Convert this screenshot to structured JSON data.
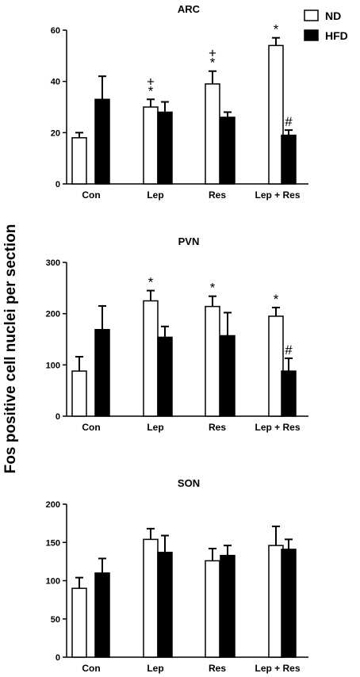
{
  "figure": {
    "ylabel": "Fos positive cell nuclei per section",
    "legend": [
      {
        "label": "ND",
        "color": "#ffffff"
      },
      {
        "label": "HFD",
        "color": "#000000"
      }
    ]
  },
  "chart_data": [
    {
      "type": "bar",
      "title": "ARC",
      "categories": [
        "Con",
        "Lep",
        "Res",
        "Lep + Res"
      ],
      "ylim": [
        0,
        60
      ],
      "yticks": [
        0,
        20,
        40,
        60
      ],
      "series": [
        {
          "name": "ND",
          "values": [
            18,
            30,
            39,
            54
          ],
          "errors": [
            2,
            3,
            5,
            3
          ],
          "annotations": [
            "",
            "*+",
            "*+",
            "*"
          ]
        },
        {
          "name": "HFD",
          "values": [
            33,
            28,
            26,
            19
          ],
          "errors": [
            9,
            4,
            2,
            2
          ],
          "annotations": [
            "",
            "",
            "",
            "#"
          ]
        }
      ]
    },
    {
      "type": "bar",
      "title": "PVN",
      "categories": [
        "Con",
        "Lep",
        "Res",
        "Lep + Res"
      ],
      "ylim": [
        0,
        300
      ],
      "yticks": [
        0,
        100,
        200,
        300
      ],
      "series": [
        {
          "name": "ND",
          "values": [
            88,
            225,
            214,
            195
          ],
          "errors": [
            28,
            20,
            20,
            17
          ],
          "annotations": [
            "",
            "*",
            "*",
            "*"
          ]
        },
        {
          "name": "HFD",
          "values": [
            169,
            154,
            157,
            88
          ],
          "errors": [
            46,
            21,
            45,
            25
          ],
          "annotations": [
            "",
            "",
            "",
            "#"
          ]
        }
      ]
    },
    {
      "type": "bar",
      "title": "SON",
      "categories": [
        "Con",
        "Lep",
        "Res",
        "Lep + Res"
      ],
      "ylim": [
        0,
        200
      ],
      "yticks": [
        0,
        50,
        100,
        150,
        200
      ],
      "series": [
        {
          "name": "ND",
          "values": [
            90,
            154,
            126,
            146
          ],
          "errors": [
            14,
            14,
            16,
            25
          ],
          "annotations": [
            "",
            "",
            "",
            ""
          ]
        },
        {
          "name": "HFD",
          "values": [
            110,
            137,
            133,
            141
          ],
          "errors": [
            19,
            22,
            13,
            13
          ],
          "annotations": [
            "",
            "",
            "",
            ""
          ]
        }
      ]
    }
  ]
}
